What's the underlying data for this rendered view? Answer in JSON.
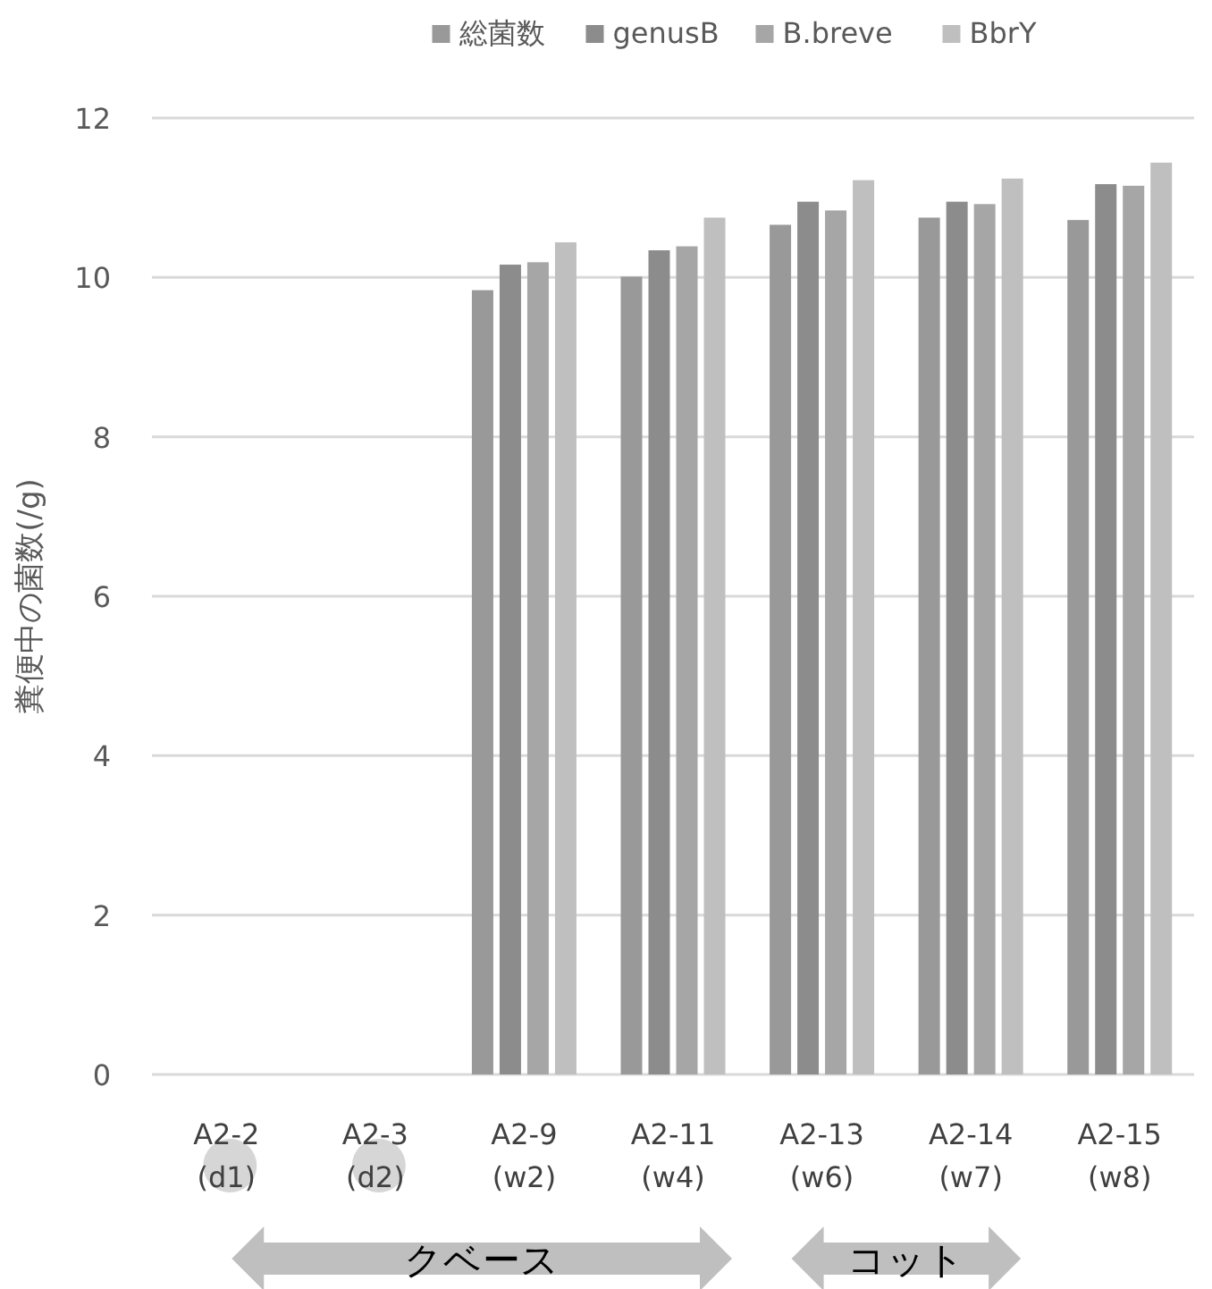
{
  "chart_data": {
    "type": "bar",
    "ylabel": "糞便中の菌数(/g)",
    "categories": [
      "A2-2 (d1)",
      "A2-3 (d2)",
      "A2-9 (w2)",
      "A2-11 (w4)",
      "A2-13 (w6)",
      "A2-14 (w7)",
      "A2-15 (w8)"
    ],
    "series": [
      {
        "name": "総菌数",
        "color": "#999999",
        "values": [
          null,
          null,
          9.84,
          10.01,
          10.66,
          10.75,
          10.72
        ]
      },
      {
        "name": "genusB",
        "color": "#8c8c8c",
        "values": [
          null,
          null,
          10.16,
          10.34,
          10.95,
          10.95,
          11.17
        ]
      },
      {
        "name": "B.breve",
        "color": "#a6a6a6",
        "values": [
          null,
          null,
          10.19,
          10.39,
          10.84,
          10.92,
          11.15
        ]
      },
      {
        "name": "BbrY",
        "color": "#bfbfbf",
        "values": [
          null,
          null,
          10.44,
          10.75,
          11.22,
          11.24,
          11.44
        ]
      }
    ],
    "ylim": [
      0,
      12
    ],
    "yticks": [
      0,
      2,
      4,
      6,
      8,
      10,
      12
    ],
    "grid": "y",
    "legend": "top",
    "annotations": [
      "クベース",
      "コット"
    ]
  }
}
